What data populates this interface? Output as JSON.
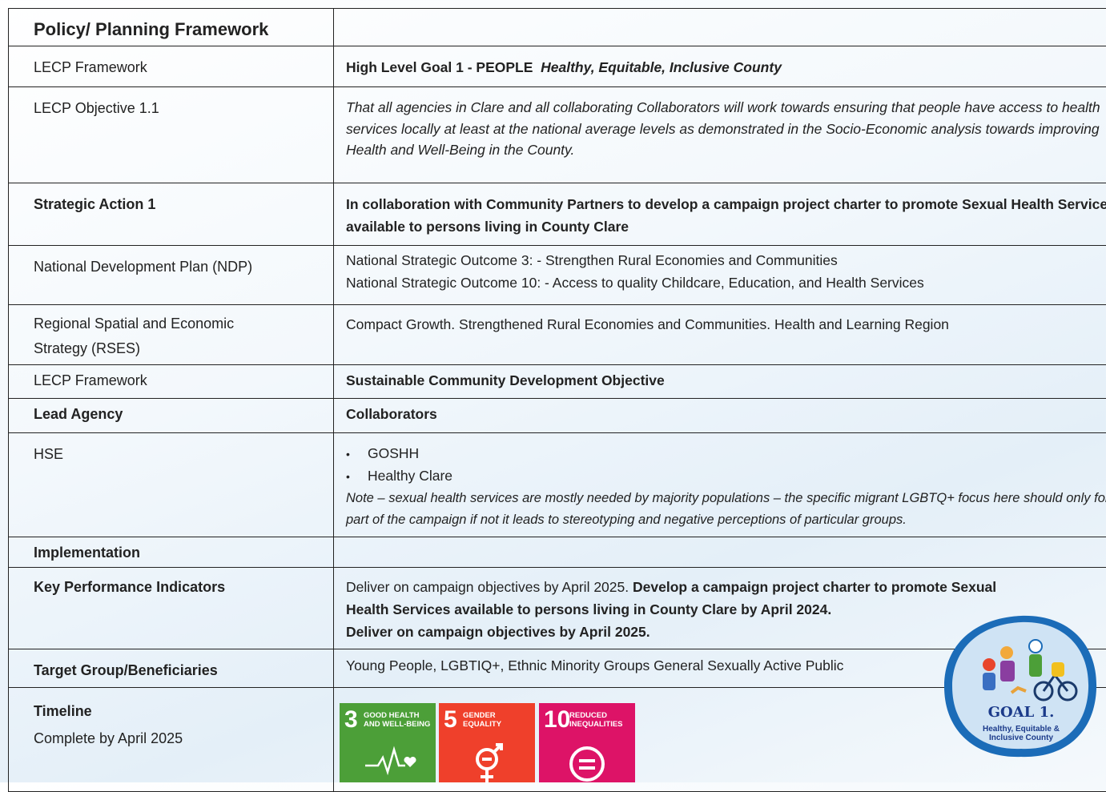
{
  "table": {
    "rows": [
      {
        "label": "Policy/ Planning Framework"
      },
      {
        "label": "LECP Framework",
        "goal": "High Level Goal 1 - PEOPLE",
        "goal_name": "Healthy, Equitable, Inclusive County"
      },
      {
        "label": "LECP Objective 1.1",
        "text": "That all agencies in Clare and all collaborating Collaborators will work towards ensuring that people have access to health services locally at least at the national average levels as demonstrated in the Socio-Economic analysis towards improving Health and Well-Being in the County."
      },
      {
        "label": "Strategic Action 1",
        "text": "In collaboration with Community Partners to develop a campaign project charter to promote Sexual Health Services available to persons living in County Clare"
      },
      {
        "label": "National Development Plan (NDP)",
        "lines": [
          "National Strategic Outcome 3: - Strengthen Rural Economies and Communities",
          "National Strategic Outcome 10: - Access to quality Childcare, Education, and Health Services"
        ]
      },
      {
        "label": "Regional Spatial and Economic Strategy (RSES)",
        "text": "Compact Growth. Strengthened Rural Economies and Communities. Health and Learning Region"
      },
      {
        "label": "LECP Framework",
        "text": "Sustainable Community Development Objective"
      },
      {
        "label": "Lead Agency",
        "text": "Collaborators"
      },
      {
        "label": "HSE",
        "bullets": [
          "GOSHH",
          "Healthy Clare"
        ],
        "note": "Note – sexual health services are mostly needed by majority populations – the specific migrant LGBTQ+ focus here should only form part of the campaign if not it leads to stereotyping and negative perceptions of particular groups."
      },
      {
        "label": "Implementation"
      },
      {
        "label": "Key Performance Indicators",
        "lead": "Deliver on campaign objectives by April 2025.",
        "bold": [
          "Develop a campaign project charter to promote Sexual Health Services available to persons living in County Clare by April 2024.",
          "Deliver on campaign objectives by April 2025."
        ]
      },
      {
        "label": "Target Group/Beneficiaries",
        "text": "Young People, LGBTIQ+, Ethnic Minority Groups General Sexually Active Public"
      },
      {
        "label": "Timeline",
        "sublabel": "Complete by April 2025",
        "sdgs": [
          {
            "number": "3",
            "name": "GOOD HEALTH AND WELL-BEING"
          },
          {
            "number": "5",
            "name": "GENDER EQUALITY"
          },
          {
            "number": "10",
            "name": "REDUCED INEQUALITIES"
          }
        ]
      }
    ]
  },
  "badge": {
    "title": "GOAL 1.",
    "subtitle": "Healthy, Equitable & Inclusive County"
  }
}
